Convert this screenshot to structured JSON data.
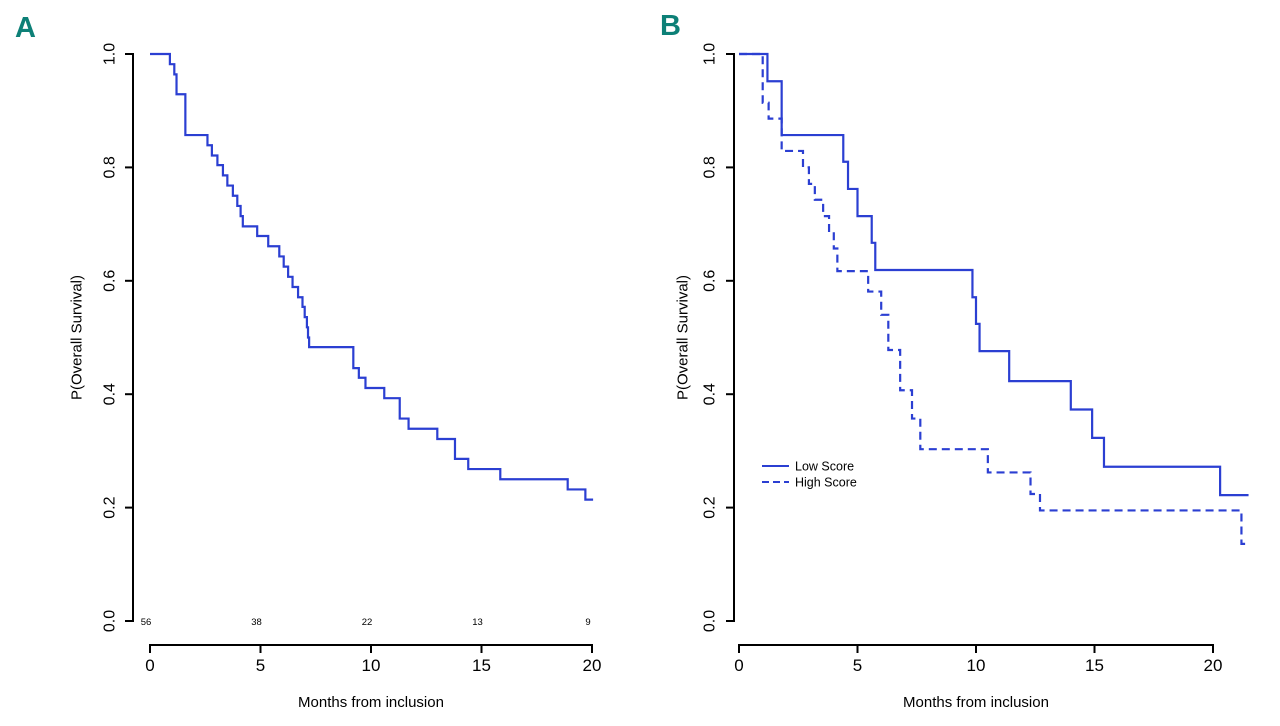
{
  "panels": [
    {
      "label": "A"
    },
    {
      "label": "B"
    }
  ],
  "colors": {
    "curve": "#2b3fd2",
    "panel_label": "#0d8077",
    "axis": "#000000"
  },
  "chart_data": [
    {
      "type": "line",
      "subtype": "kaplan-meier-step",
      "panel": "A",
      "title": "",
      "xlabel": "Months from inclusion",
      "ylabel": "P(Overall Survival)",
      "xlim": [
        0,
        20
      ],
      "ylim": [
        0.0,
        1.0
      ],
      "grid": false,
      "xticks": [
        "0",
        "5",
        "10",
        "15",
        "20"
      ],
      "xtick_values": [
        0,
        5,
        10,
        15,
        20
      ],
      "yticks": [
        "0.0",
        "0.2",
        "0.4",
        "0.6",
        "0.8",
        "1.0"
      ],
      "ytick_values": [
        0.0,
        0.2,
        0.4,
        0.6,
        0.8,
        1.0
      ],
      "numbers_at_risk": {
        "times": [
          0,
          5,
          10,
          15,
          20
        ],
        "counts": [
          "56",
          "38",
          "22",
          "13",
          "9"
        ]
      },
      "series": [
        {
          "line_style": "solid",
          "end_time": 20.05,
          "steps": [
            [
              0,
              1.0
            ],
            [
              0.9,
              0.982
            ],
            [
              1.1,
              0.964
            ],
            [
              1.2,
              0.929
            ],
            [
              1.6,
              0.857
            ],
            [
              2.6,
              0.839
            ],
            [
              2.8,
              0.821
            ],
            [
              3.05,
              0.804
            ],
            [
              3.3,
              0.786
            ],
            [
              3.5,
              0.768
            ],
            [
              3.75,
              0.75
            ],
            [
              3.95,
              0.732
            ],
            [
              4.1,
              0.714
            ],
            [
              4.2,
              0.696
            ],
            [
              4.85,
              0.679
            ],
            [
              5.35,
              0.661
            ],
            [
              5.85,
              0.643
            ],
            [
              6.05,
              0.625
            ],
            [
              6.25,
              0.607
            ],
            [
              6.45,
              0.589
            ],
            [
              6.7,
              0.571
            ],
            [
              6.9,
              0.554
            ],
            [
              7.0,
              0.536
            ],
            [
              7.1,
              0.518
            ],
            [
              7.15,
              0.5
            ],
            [
              7.2,
              0.483
            ],
            [
              9.2,
              0.446
            ],
            [
              9.45,
              0.429
            ],
            [
              9.75,
              0.411
            ],
            [
              10.6,
              0.393
            ],
            [
              11.3,
              0.357
            ],
            [
              11.7,
              0.339
            ],
            [
              13.0,
              0.321
            ],
            [
              13.8,
              0.286
            ],
            [
              14.4,
              0.268
            ],
            [
              15.85,
              0.25
            ],
            [
              18.9,
              0.232
            ],
            [
              19.7,
              0.214
            ]
          ]
        }
      ]
    },
    {
      "type": "line",
      "subtype": "kaplan-meier-step",
      "panel": "B",
      "title": "",
      "xlabel": "Months from inclusion",
      "ylabel": "P(Overall Survival)",
      "xlim": [
        0,
        20
      ],
      "ylim": [
        0.0,
        1.0
      ],
      "grid": false,
      "xticks": [
        "0",
        "5",
        "10",
        "15",
        "20"
      ],
      "xtick_values": [
        0,
        5,
        10,
        15,
        20
      ],
      "yticks": [
        "0.0",
        "0.2",
        "0.4",
        "0.6",
        "0.8",
        "1.0"
      ],
      "ytick_values": [
        0.0,
        0.2,
        0.4,
        0.6,
        0.8,
        1.0
      ],
      "legend": {
        "position": "left-middle",
        "entries": [
          {
            "label": "Low Score",
            "line_style": "solid"
          },
          {
            "label": "High Score",
            "line_style": "dashed"
          }
        ]
      },
      "series": [
        {
          "name": "Low Score",
          "line_style": "solid",
          "end_time": 21.5,
          "steps": [
            [
              0,
              1.0
            ],
            [
              1.2,
              0.952
            ],
            [
              1.8,
              0.857
            ],
            [
              4.4,
              0.81
            ],
            [
              4.6,
              0.762
            ],
            [
              5.0,
              0.714
            ],
            [
              5.6,
              0.667
            ],
            [
              5.75,
              0.619
            ],
            [
              9.85,
              0.571
            ],
            [
              10.0,
              0.524
            ],
            [
              10.15,
              0.476
            ],
            [
              11.4,
              0.423
            ],
            [
              14.0,
              0.373
            ],
            [
              14.9,
              0.323
            ],
            [
              15.4,
              0.272
            ],
            [
              20.3,
              0.222
            ]
          ]
        },
        {
          "name": "High Score",
          "line_style": "dashed",
          "end_time": 21.4,
          "steps": [
            [
              0,
              1.0
            ],
            [
              1.0,
              0.914
            ],
            [
              1.25,
              0.886
            ],
            [
              1.8,
              0.829
            ],
            [
              2.7,
              0.8
            ],
            [
              2.95,
              0.771
            ],
            [
              3.2,
              0.743
            ],
            [
              3.55,
              0.714
            ],
            [
              3.8,
              0.686
            ],
            [
              4.0,
              0.657
            ],
            [
              4.15,
              0.617
            ],
            [
              5.45,
              0.581
            ],
            [
              6.0,
              0.54
            ],
            [
              6.3,
              0.478
            ],
            [
              6.8,
              0.407
            ],
            [
              7.3,
              0.357
            ],
            [
              7.65,
              0.303
            ],
            [
              10.5,
              0.262
            ],
            [
              12.3,
              0.224
            ],
            [
              12.7,
              0.195
            ],
            [
              21.2,
              0.136
            ]
          ]
        }
      ]
    }
  ]
}
